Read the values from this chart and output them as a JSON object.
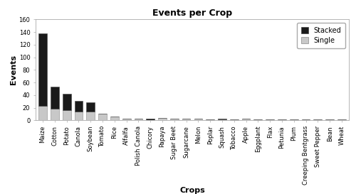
{
  "title": "Events per Crop",
  "xlabel": "Crops",
  "ylabel": "Events",
  "ylim": [
    0,
    160
  ],
  "yticks": [
    0,
    20,
    40,
    60,
    80,
    100,
    120,
    140,
    160
  ],
  "categories": [
    "Maize",
    "Cotton",
    "Potato",
    "Canola",
    "Soybean",
    "Tomato",
    "Rice",
    "Alfalfa",
    "Polish Canola",
    "Chicory",
    "Papaya",
    "Sugar Beet",
    "Sugarcane",
    "Melon",
    "Poplar",
    "Squash",
    "Tobacco",
    "Apple",
    "Eggplant",
    "Flax",
    "Petunia",
    "Plum",
    "Creeping Bentgrass",
    "Sweet Pepper",
    "Bean",
    "Wheat"
  ],
  "single": [
    23,
    18,
    16,
    14,
    14,
    11,
    6,
    3,
    3,
    0,
    4,
    3,
    2,
    2,
    1,
    1,
    1,
    2,
    1,
    1,
    1,
    1,
    1,
    1,
    1,
    1
  ],
  "stacked": [
    115,
    35,
    26,
    17,
    15,
    0,
    0,
    0,
    0,
    3,
    0,
    0,
    1,
    0,
    0,
    1,
    0,
    0,
    0,
    0,
    0,
    0,
    0,
    0,
    0,
    0
  ],
  "single_color": "#c8c8c8",
  "stacked_color": "#1a1a1a",
  "background_color": "#ffffff",
  "plot_bg_color": "#ffffff",
  "title_fontsize": 9,
  "label_fontsize": 8,
  "tick_fontsize": 6,
  "legend_fontsize": 7
}
